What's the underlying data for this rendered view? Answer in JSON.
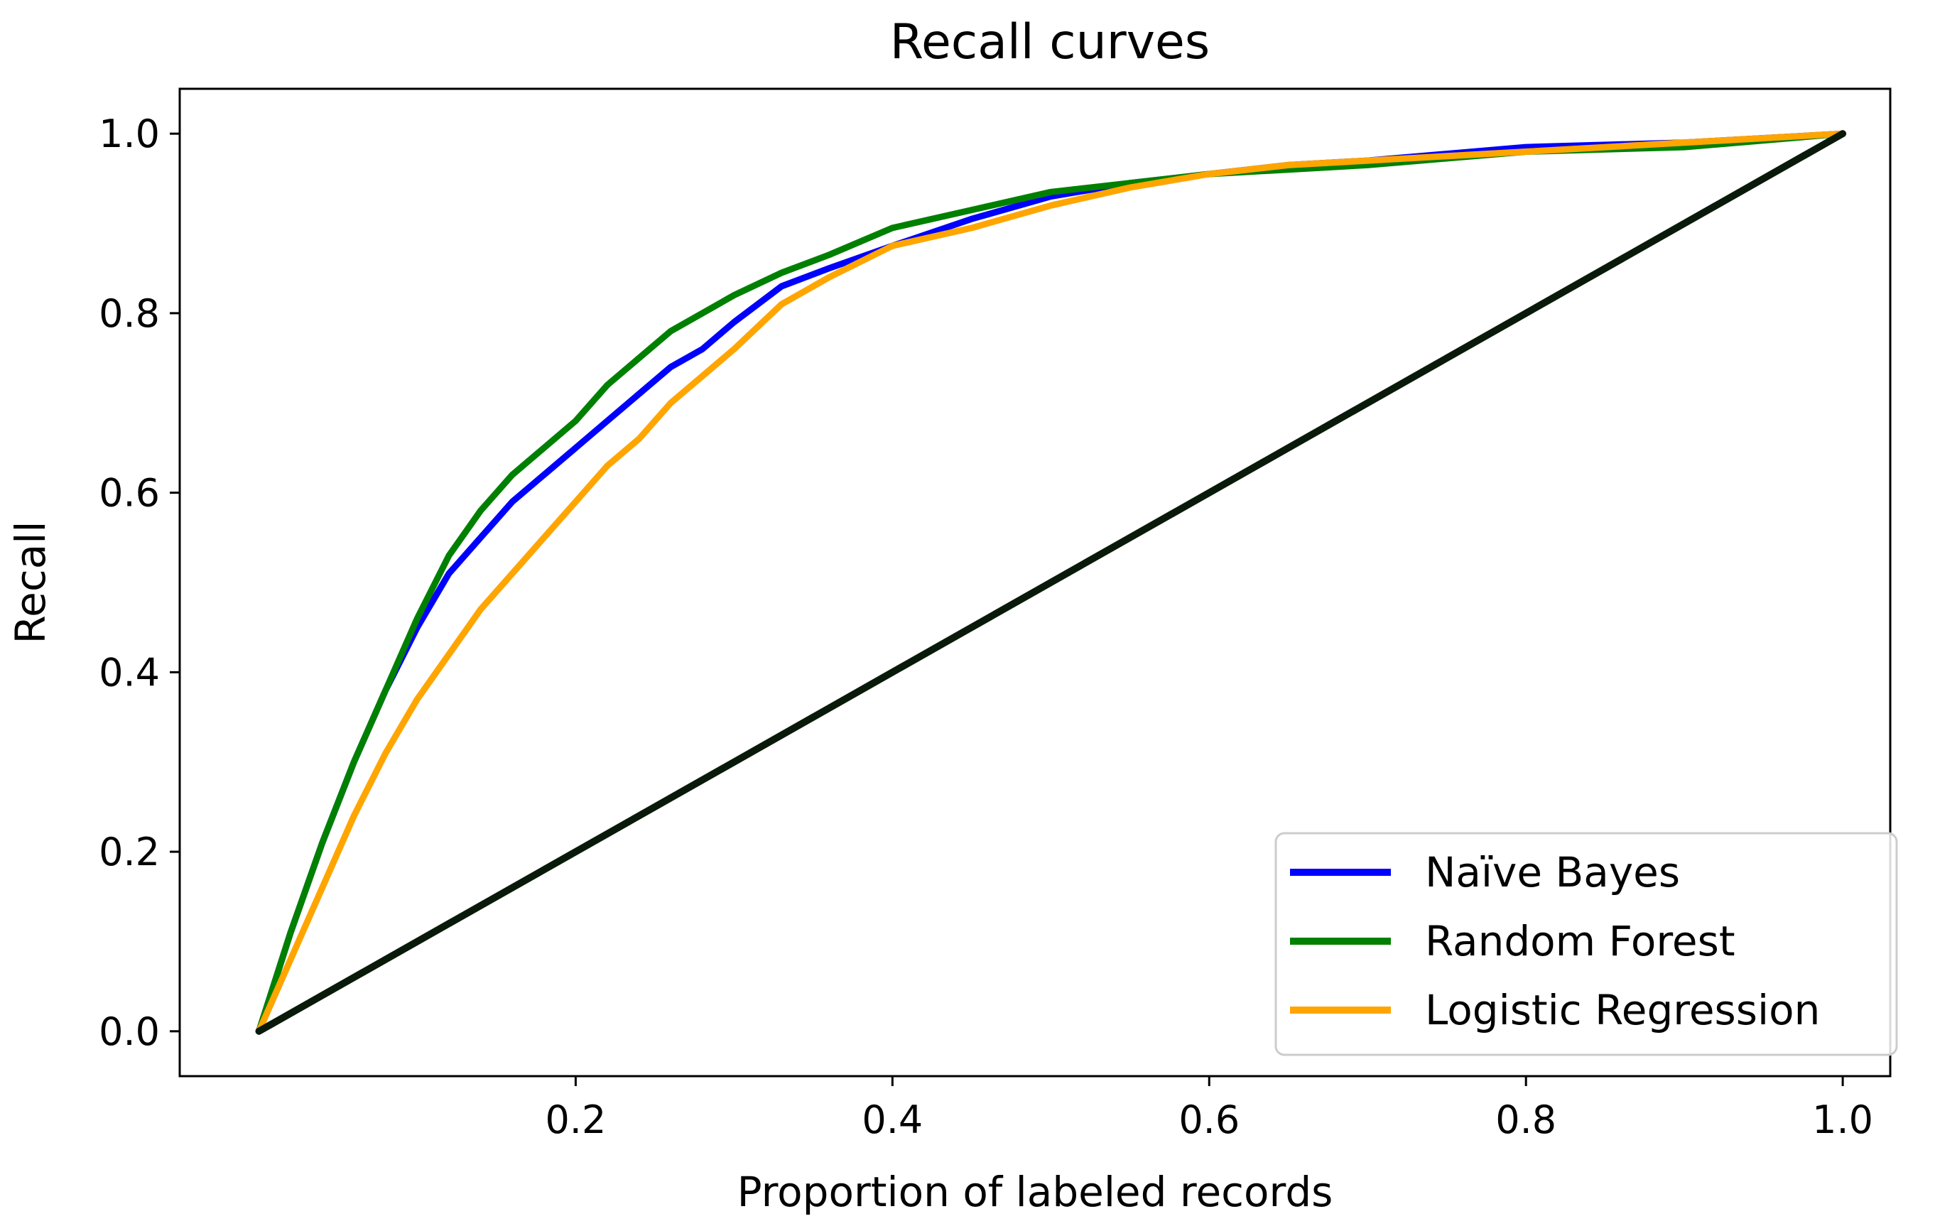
{
  "chart_data": {
    "type": "line",
    "title": "Recall curves",
    "xlabel": "Proportion of labeled records",
    "ylabel": "Recall",
    "xlim": [
      -0.05,
      1.03
    ],
    "ylim": [
      -0.05,
      1.05
    ],
    "xticks": [
      0.2,
      0.4,
      0.6,
      0.8,
      1.0
    ],
    "xtick_labels": [
      "0.2",
      "0.4",
      "0.6",
      "0.8",
      "1.0"
    ],
    "yticks": [
      0.0,
      0.2,
      0.4,
      0.6,
      0.8,
      1.0
    ],
    "ytick_labels": [
      "0.0",
      "0.2",
      "0.4",
      "0.6",
      "0.8",
      "1.0"
    ],
    "grid": false,
    "legend_position": "lower-right",
    "series": [
      {
        "name": "Naïve Bayes",
        "color": "#0000ff",
        "in_legend": true,
        "x": [
          0.0,
          0.02,
          0.04,
          0.06,
          0.08,
          0.1,
          0.12,
          0.14,
          0.16,
          0.18,
          0.2,
          0.22,
          0.24,
          0.26,
          0.28,
          0.3,
          0.33,
          0.36,
          0.4,
          0.45,
          0.5,
          0.55,
          0.6,
          0.65,
          0.7,
          0.8,
          0.9,
          1.0
        ],
        "y": [
          0.0,
          0.11,
          0.21,
          0.3,
          0.38,
          0.45,
          0.51,
          0.55,
          0.59,
          0.62,
          0.65,
          0.68,
          0.71,
          0.74,
          0.76,
          0.79,
          0.83,
          0.85,
          0.875,
          0.905,
          0.93,
          0.945,
          0.955,
          0.965,
          0.97,
          0.985,
          0.99,
          1.0
        ]
      },
      {
        "name": "Random Forest",
        "color": "#008000",
        "in_legend": true,
        "x": [
          0.0,
          0.02,
          0.04,
          0.06,
          0.08,
          0.1,
          0.12,
          0.14,
          0.16,
          0.18,
          0.2,
          0.22,
          0.24,
          0.26,
          0.28,
          0.3,
          0.33,
          0.36,
          0.4,
          0.45,
          0.5,
          0.55,
          0.6,
          0.65,
          0.7,
          0.8,
          0.9,
          1.0
        ],
        "y": [
          0.0,
          0.11,
          0.21,
          0.3,
          0.38,
          0.46,
          0.53,
          0.58,
          0.62,
          0.65,
          0.68,
          0.72,
          0.75,
          0.78,
          0.8,
          0.82,
          0.845,
          0.865,
          0.895,
          0.915,
          0.935,
          0.945,
          0.955,
          0.96,
          0.965,
          0.98,
          0.985,
          1.0
        ]
      },
      {
        "name": "Logistic Regression",
        "color": "#ffa500",
        "in_legend": true,
        "x": [
          0.0,
          0.02,
          0.04,
          0.06,
          0.08,
          0.1,
          0.12,
          0.14,
          0.16,
          0.18,
          0.2,
          0.22,
          0.24,
          0.26,
          0.28,
          0.3,
          0.33,
          0.36,
          0.4,
          0.45,
          0.5,
          0.55,
          0.6,
          0.65,
          0.7,
          0.8,
          0.9,
          1.0
        ],
        "y": [
          0.0,
          0.08,
          0.16,
          0.24,
          0.31,
          0.37,
          0.42,
          0.47,
          0.51,
          0.55,
          0.59,
          0.63,
          0.66,
          0.7,
          0.73,
          0.76,
          0.81,
          0.84,
          0.875,
          0.895,
          0.92,
          0.94,
          0.955,
          0.965,
          0.97,
          0.98,
          0.99,
          1.0
        ]
      },
      {
        "name": "Random baseline",
        "color": "#0a1a0a",
        "in_legend": false,
        "x": [
          0.0,
          1.0
        ],
        "y": [
          0.0,
          1.0
        ]
      }
    ]
  }
}
